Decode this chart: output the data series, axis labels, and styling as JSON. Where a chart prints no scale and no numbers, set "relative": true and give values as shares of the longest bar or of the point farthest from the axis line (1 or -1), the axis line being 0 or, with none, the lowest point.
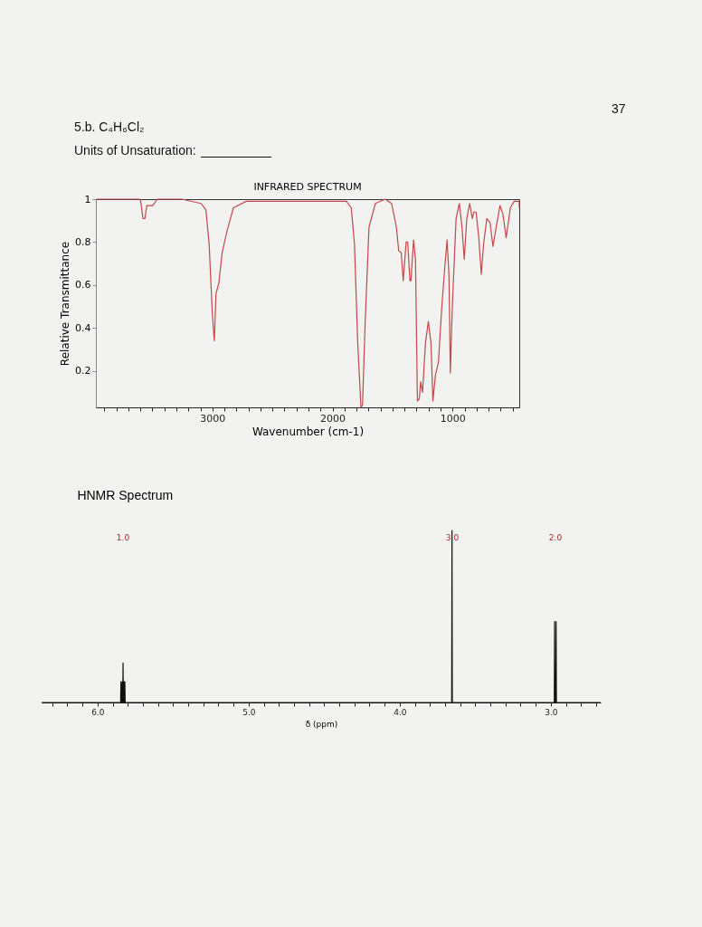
{
  "chart_data": [
    {
      "type": "line",
      "title": "INFRARED SPECTRUM",
      "xlabel": "Wavenumber (cm-1)",
      "ylabel": "Relative Transmittance",
      "annotations": [
        "37",
        "5.b. C₄H₆Cl₂",
        "Units of Unsaturation:"
      ],
      "xlim": [
        3970,
        445
      ],
      "ylim": [
        0.03,
        1
      ],
      "xticks": [
        {
          "value": 3900,
          "label": null
        },
        {
          "value": 3800,
          "label": null
        },
        {
          "value": 3700,
          "label": null
        },
        {
          "value": 3600,
          "label": null
        },
        {
          "value": 3500,
          "label": null
        },
        {
          "value": 3400,
          "label": null
        },
        {
          "value": 3300,
          "label": null
        },
        {
          "value": 3200,
          "label": null
        },
        {
          "value": 3100,
          "label": null
        },
        3000,
        {
          "value": 2900,
          "label": null
        },
        {
          "value": 2800,
          "label": null
        },
        {
          "value": 2700,
          "label": null
        },
        {
          "value": 2600,
          "label": null
        },
        {
          "value": 2500,
          "label": null
        },
        {
          "value": 2400,
          "label": null
        },
        {
          "value": 2300,
          "label": null
        },
        {
          "value": 2200,
          "label": null
        },
        {
          "value": 2100,
          "label": null
        },
        2000,
        {
          "value": 1900,
          "label": null
        },
        {
          "value": 1800,
          "label": null
        },
        {
          "value": 1700,
          "label": null
        },
        {
          "value": 1600,
          "label": null
        },
        {
          "value": 1500,
          "label": null
        },
        {
          "value": 1400,
          "label": null
        },
        {
          "value": 1300,
          "label": null
        },
        {
          "value": 1200,
          "label": null
        },
        {
          "value": 1100,
          "label": null
        },
        1000,
        {
          "value": 900,
          "label": null
        },
        {
          "value": 800,
          "label": null
        },
        {
          "value": 700,
          "label": null
        },
        {
          "value": 600,
          "label": null
        },
        {
          "value": 500,
          "label": null
        }
      ],
      "yticks": [
        0.2,
        0.4,
        0.6,
        0.8,
        1
      ],
      "series": [
        {
          "color": "#c4474a",
          "x": [
            3967,
            3605,
            3597,
            3578,
            3562,
            3546,
            3497,
            3457,
            3255,
            3094,
            3054,
            3027,
            3000,
            2984,
            2970,
            2946,
            2919,
            2879,
            2825,
            2718,
            2583,
            2315,
            2046,
            1884,
            1844,
            1817,
            1790,
            1763,
            1750,
            1729,
            1696,
            1643,
            1562,
            1508,
            1468,
            1449,
            1428,
            1411,
            1387,
            1374,
            1355,
            1347,
            1325,
            1309,
            1293,
            1277,
            1266,
            1250,
            1226,
            1202,
            1180,
            1164,
            1143,
            1118,
            1091,
            1067,
            1046,
            1030,
            1019,
            1003,
            971,
            944,
            922,
            903,
            882,
            858,
            836,
            823,
            804,
            782,
            761,
            742,
            715,
            688,
            664,
            634,
            605,
            581,
            554,
            519,
            487,
            446,
            445
          ],
          "values": [
            1.0,
            1.0,
            0.99,
            0.91,
            0.91,
            0.97,
            0.97,
            1.0,
            1.0,
            0.98,
            0.95,
            0.79,
            0.46,
            0.34,
            0.56,
            0.61,
            0.75,
            0.85,
            0.96,
            0.99,
            0.99,
            0.99,
            0.99,
            0.99,
            0.96,
            0.79,
            0.33,
            0.03,
            0.04,
            0.41,
            0.87,
            0.98,
            1.0,
            0.98,
            0.87,
            0.76,
            0.75,
            0.62,
            0.8,
            0.8,
            0.62,
            0.62,
            0.81,
            0.72,
            0.06,
            0.07,
            0.15,
            0.1,
            0.33,
            0.43,
            0.33,
            0.06,
            0.18,
            0.24,
            0.49,
            0.67,
            0.81,
            0.64,
            0.19,
            0.49,
            0.91,
            0.98,
            0.87,
            0.72,
            0.91,
            0.98,
            0.91,
            0.94,
            0.94,
            0.82,
            0.65,
            0.79,
            0.91,
            0.89,
            0.78,
            0.88,
            0.97,
            0.93,
            0.82,
            0.96,
            0.99,
            0.99,
            0.96
          ]
        }
      ]
    },
    {
      "type": "line",
      "title": "HNMR Spectrum",
      "xlabel": "δ (ppm)",
      "relative": true,
      "annotations": [
        "1.0",
        "3.0",
        "2.0"
      ],
      "xlim": [
        6.37,
        2.67
      ],
      "xticks": [
        {
          "value": 6.3,
          "label": null
        },
        {
          "value": 6.2,
          "label": null
        },
        {
          "value": 6.1,
          "label": null
        },
        {
          "value": 6.0,
          "label": "6.0"
        },
        {
          "value": 5.9,
          "label": null
        },
        {
          "value": 5.8,
          "label": null
        },
        {
          "value": 5.7,
          "label": null
        },
        {
          "value": 5.6,
          "label": null
        },
        {
          "value": 5.5,
          "label": null
        },
        {
          "value": 5.4,
          "label": null
        },
        {
          "value": 5.3,
          "label": null
        },
        {
          "value": 5.2,
          "label": null
        },
        {
          "value": 5.1,
          "label": null
        },
        {
          "value": 5.0,
          "label": "5.0"
        },
        {
          "value": 4.9,
          "label": null
        },
        {
          "value": 4.8,
          "label": null
        },
        {
          "value": 4.7,
          "label": null
        },
        {
          "value": 4.6,
          "label": null
        },
        {
          "value": 4.5,
          "label": null
        },
        {
          "value": 4.4,
          "label": null
        },
        {
          "value": 4.3,
          "label": null
        },
        {
          "value": 4.2,
          "label": null
        },
        {
          "value": 4.1,
          "label": null
        },
        {
          "value": 4.0,
          "label": "4.0"
        },
        {
          "value": 3.9,
          "label": null
        },
        {
          "value": 3.8,
          "label": null
        },
        {
          "value": 3.7,
          "label": null
        },
        {
          "value": 3.6,
          "label": null
        },
        {
          "value": 3.5,
          "label": null
        },
        {
          "value": 3.4,
          "label": null
        },
        {
          "value": 3.3,
          "label": null
        },
        {
          "value": 3.2,
          "label": null
        },
        {
          "value": 3.1,
          "label": null
        },
        {
          "value": 3.0,
          "label": "3.0"
        },
        {
          "value": 2.9,
          "label": null
        },
        {
          "value": 2.8,
          "label": null
        },
        {
          "value": 2.7,
          "label": null
        }
      ],
      "series": [
        {
          "color": "#111111",
          "x": [
            6.37,
            5.847,
            5.845,
            5.843,
            5.839,
            5.837,
            5.835,
            5.833,
            5.831,
            5.829,
            5.827,
            5.825,
            5.823,
            5.821,
            5.819,
            5.817,
            3.656,
            3.654,
            3.652,
            2.977,
            2.975,
            2.973,
            2.967,
            2.965,
            2.963,
            2.67
          ],
          "values": [
            0,
            0,
            0.12,
            0,
            0,
            0.12,
            0,
            0,
            0.23,
            0,
            0,
            0.12,
            0,
            0,
            0.12,
            0,
            0,
            1,
            0,
            0,
            0.47,
            0,
            0,
            0.47,
            0,
            0
          ]
        }
      ]
    }
  ]
}
